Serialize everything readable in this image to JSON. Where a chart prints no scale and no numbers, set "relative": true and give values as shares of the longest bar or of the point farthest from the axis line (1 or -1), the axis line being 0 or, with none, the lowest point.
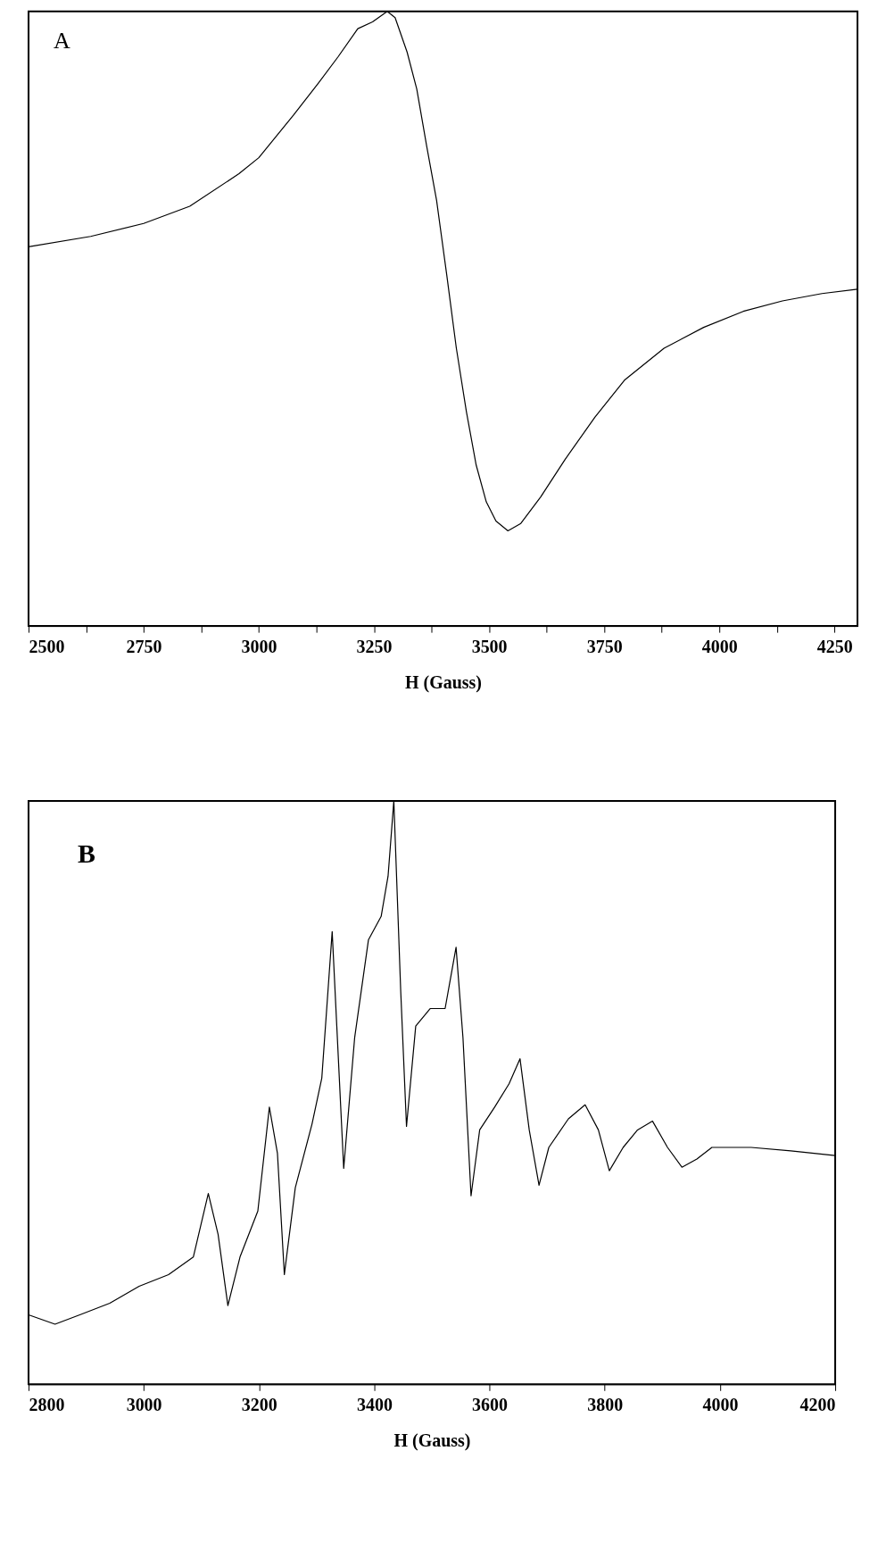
{
  "chart_data": [
    {
      "type": "line",
      "relative": true,
      "tick_labels": "x",
      "xlabel": "H (Gauss)",
      "annotations": [
        "A"
      ],
      "xlim": [
        2500,
        4300
      ],
      "xticks": [
        2500,
        {
          "value": 2625,
          "label": null
        },
        2750,
        {
          "value": 2875,
          "label": null
        },
        3000,
        {
          "value": 3125,
          "label": null
        },
        3250,
        {
          "value": 3375,
          "label": null
        },
        3500,
        {
          "value": 3625,
          "label": null
        },
        3750,
        {
          "value": 3875,
          "label": null
        },
        4000,
        {
          "value": 4125,
          "label": null
        },
        4250
      ],
      "series": [
        {
          "color": "#000000",
          "x": [
            2500,
            2635,
            2750,
            2850,
            2957,
            3000,
            3075,
            3129,
            3172,
            3215,
            3247,
            3279,
            3296,
            3322,
            3343,
            3365,
            3386,
            3408,
            3429,
            3451,
            3472,
            3494,
            3515,
            3541,
            3569,
            3612,
            3665,
            3730,
            3794,
            3880,
            3966,
            4052,
            4137,
            4223,
            4300
          ],
          "values": [
            0.617,
            0.634,
            0.655,
            0.683,
            0.736,
            0.762,
            0.831,
            0.883,
            0.926,
            0.972,
            0.983,
            1.0,
            0.99,
            0.934,
            0.874,
            0.779,
            0.693,
            0.572,
            0.452,
            0.348,
            0.262,
            0.202,
            0.171,
            0.155,
            0.167,
            0.21,
            0.271,
            0.34,
            0.4,
            0.452,
            0.486,
            0.512,
            0.529,
            0.541,
            0.548
          ]
        }
      ]
    },
    {
      "type": "line",
      "relative": true,
      "tick_labels": "x",
      "xlabel": "H (Gauss)",
      "annotations": [
        "B"
      ],
      "xlim": [
        2800,
        4200
      ],
      "xticks": [
        2800,
        3000,
        3200,
        3400,
        3600,
        3800,
        4000,
        4200
      ],
      "series": [
        {
          "color": "#000000",
          "x": [
            2800,
            2846,
            2889,
            2941,
            2992,
            3043,
            3086,
            3112,
            3129,
            3146,
            3167,
            3198,
            3218,
            3232,
            3244,
            3263,
            3292,
            3309,
            3327,
            3335,
            3347,
            3366,
            3390,
            3412,
            3424,
            3434,
            3446,
            3456,
            3472,
            3497,
            3523,
            3542,
            3554,
            3568,
            3583,
            3609,
            3634,
            3653,
            3669,
            3686,
            3703,
            3737,
            3766,
            3789,
            3808,
            3832,
            3857,
            3883,
            3909,
            3934,
            3960,
            3986,
            4054,
            4123,
            4200
          ],
          "values": [
            0.119,
            0.103,
            0.119,
            0.139,
            0.168,
            0.188,
            0.218,
            0.327,
            0.257,
            0.135,
            0.218,
            0.297,
            0.475,
            0.396,
            0.188,
            0.337,
            0.446,
            0.525,
            0.776,
            0.614,
            0.37,
            0.594,
            0.762,
            0.802,
            0.871,
            1.0,
            0.673,
            0.442,
            0.614,
            0.644,
            0.644,
            0.749,
            0.594,
            0.323,
            0.436,
            0.475,
            0.515,
            0.558,
            0.436,
            0.341,
            0.406,
            0.455,
            0.479,
            0.436,
            0.366,
            0.406,
            0.436,
            0.451,
            0.406,
            0.372,
            0.386,
            0.406,
            0.406,
            0.4,
            0.392
          ]
        }
      ]
    }
  ]
}
